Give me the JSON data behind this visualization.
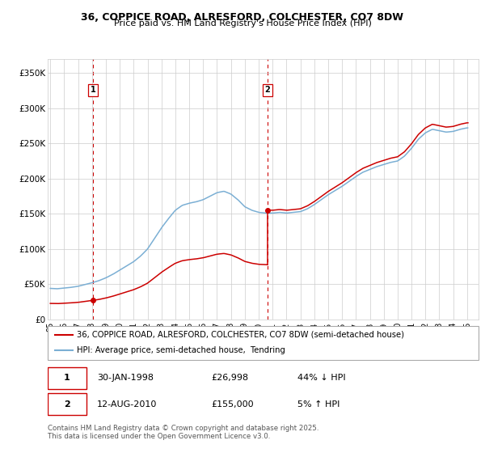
{
  "title_line1": "36, COPPICE ROAD, ALRESFORD, COLCHESTER, CO7 8DW",
  "title_line2": "Price paid vs. HM Land Registry's House Price Index (HPI)",
  "legend_line1": "36, COPPICE ROAD, ALRESFORD, COLCHESTER, CO7 8DW (semi-detached house)",
  "legend_line2": "HPI: Average price, semi-detached house,  Tendring",
  "footnote_line1": "Contains HM Land Registry data © Crown copyright and database right 2025.",
  "footnote_line2": "This data is licensed under the Open Government Licence v3.0.",
  "purchase1_date": "30-JAN-1998",
  "purchase1_price": "£26,998",
  "purchase1_hpi": "44% ↓ HPI",
  "purchase1_x": 1998.08,
  "purchase1_y": 26998,
  "purchase2_date": "12-AUG-2010",
  "purchase2_price": "£155,000",
  "purchase2_hpi": "5% ↑ HPI",
  "purchase2_x": 2010.62,
  "purchase2_y": 155000,
  "red_color": "#cc0000",
  "blue_color": "#7bafd4",
  "grid_color": "#cccccc",
  "bg_color": "#ffffff",
  "ylim_min": 0,
  "ylim_max": 370000,
  "xlim_min": 1994.8,
  "xlim_max": 2025.8,
  "yticks": [
    0,
    50000,
    100000,
    150000,
    200000,
    250000,
    300000,
    350000
  ],
  "ytick_labels": [
    "£0",
    "£50K",
    "£100K",
    "£150K",
    "£200K",
    "£250K",
    "£300K",
    "£350K"
  ],
  "xtick_labels": [
    "95",
    "96",
    "97",
    "98",
    "99",
    "00",
    "01",
    "02",
    "03",
    "04",
    "05",
    "06",
    "07",
    "08",
    "09",
    "10",
    "11",
    "12",
    "13",
    "14",
    "15",
    "16",
    "17",
    "18",
    "19",
    "20",
    "21",
    "22",
    "23",
    "24",
    "25"
  ],
  "xticks": [
    1995,
    1996,
    1997,
    1998,
    1999,
    2000,
    2001,
    2002,
    2003,
    2004,
    2005,
    2006,
    2007,
    2008,
    2009,
    2010,
    2011,
    2012,
    2013,
    2014,
    2015,
    2016,
    2017,
    2018,
    2019,
    2020,
    2021,
    2022,
    2023,
    2024,
    2025
  ]
}
